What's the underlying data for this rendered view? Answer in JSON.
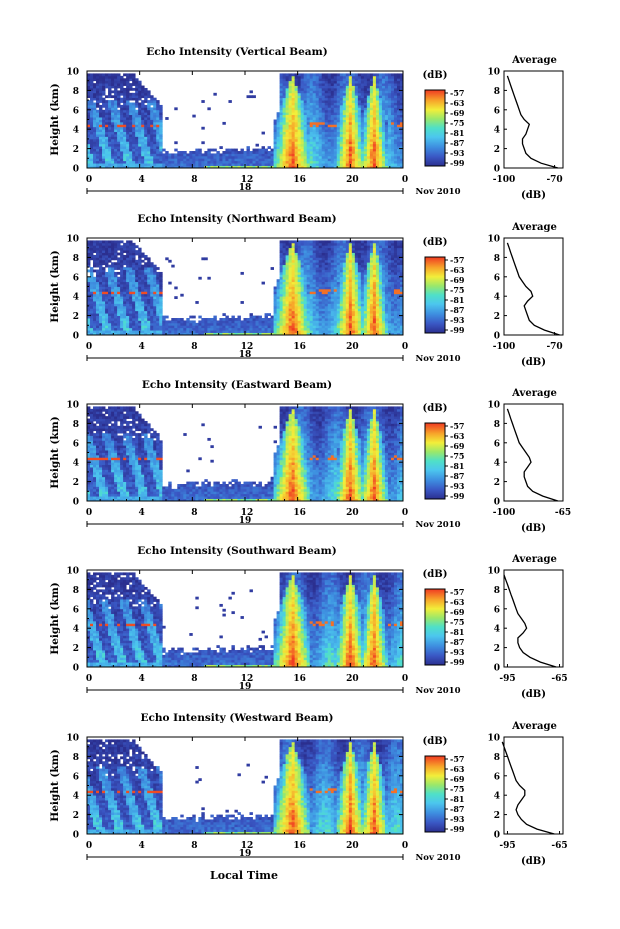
{
  "figure": {
    "xlabel": "Local Time",
    "panels_count_note": ""
  },
  "chart_data": [
    {
      "type": "heatmap",
      "title": "Echo Intensity (Vertical Beam)",
      "ylabel": "Height (km)",
      "yticks": [
        "0",
        "2",
        "4",
        "6",
        "8",
        "10"
      ],
      "ylim": [
        0,
        10
      ],
      "xticks": [
        "0",
        "4",
        "8",
        "12",
        "16",
        "20",
        "0"
      ],
      "xlim": [
        0,
        24
      ],
      "day_label": "18",
      "month_label": "Nov 2010",
      "colorbar": {
        "unit": "(dB)",
        "ticks": [
          "-57",
          "-63",
          "-69",
          "-75",
          "-81",
          "-87",
          "-93",
          "-99"
        ]
      },
      "average_profile": {
        "title": "Average",
        "xlabel": "(dB)",
        "xticks": [
          "-100",
          "-70"
        ],
        "xlim": [
          -100,
          -65
        ],
        "yticks": [
          "0",
          "2",
          "4",
          "6",
          "8",
          "10"
        ],
        "height_km": [
          0,
          0.5,
          1,
          1.5,
          2,
          2.5,
          3,
          3.5,
          4,
          4.5,
          5,
          5.5,
          6,
          6.5,
          7,
          7.5,
          8,
          8.5,
          9,
          9.5
        ],
        "db": [
          -68,
          -78,
          -84,
          -87,
          -88,
          -89,
          -89,
          -87,
          -86,
          -85,
          -88,
          -90,
          -91,
          -92,
          -93,
          -94,
          -95,
          -96,
          -97,
          -98
        ]
      }
    },
    {
      "type": "heatmap",
      "title": "Echo Intensity (Northward Beam)",
      "ylabel": "Height (km)",
      "yticks": [
        "0",
        "2",
        "4",
        "6",
        "8",
        "10"
      ],
      "ylim": [
        0,
        10
      ],
      "xticks": [
        "0",
        "4",
        "8",
        "12",
        "16",
        "20",
        "0"
      ],
      "xlim": [
        0,
        24
      ],
      "day_label": "18",
      "month_label": "Nov 2010",
      "colorbar": {
        "unit": "(dB)",
        "ticks": [
          "-57",
          "-63",
          "-69",
          "-75",
          "-81",
          "-87",
          "-93",
          "-99"
        ]
      },
      "average_profile": {
        "title": "Average",
        "xlabel": "(dB)",
        "xticks": [
          "-100",
          "-70"
        ],
        "xlim": [
          -100,
          -65
        ],
        "yticks": [
          "0",
          "2",
          "4",
          "6",
          "8",
          "10"
        ],
        "height_km": [
          0,
          0.5,
          1,
          1.5,
          2,
          2.5,
          3,
          3.5,
          4,
          4.5,
          5,
          5.5,
          6,
          6.5,
          7,
          7.5,
          8,
          8.5,
          9,
          9.5
        ],
        "db": [
          -67,
          -76,
          -82,
          -85,
          -86,
          -87,
          -88,
          -86,
          -83,
          -84,
          -87,
          -89,
          -91,
          -92,
          -93,
          -94,
          -95,
          -96,
          -97,
          -98
        ]
      }
    },
    {
      "type": "heatmap",
      "title": "Echo Intensity (Eastward Beam)",
      "ylabel": "Height (km)",
      "yticks": [
        "0",
        "2",
        "4",
        "6",
        "8",
        "10"
      ],
      "ylim": [
        0,
        10
      ],
      "xticks": [
        "0",
        "4",
        "8",
        "12",
        "16",
        "20",
        "0"
      ],
      "xlim": [
        0,
        24
      ],
      "day_label": "19",
      "month_label": "Nov 2010",
      "colorbar": {
        "unit": "(dB)",
        "ticks": [
          "-57",
          "-63",
          "-69",
          "-75",
          "-81",
          "-87",
          "-93",
          "-99"
        ]
      },
      "average_profile": {
        "title": "Average",
        "xlabel": "(dB)",
        "xticks": [
          "-100",
          "-65"
        ],
        "xlim": [
          -100,
          -65
        ],
        "yticks": [
          "0",
          "2",
          "4",
          "6",
          "8",
          "10"
        ],
        "height_km": [
          0,
          0.5,
          1,
          1.5,
          2,
          2.5,
          3,
          3.5,
          4,
          4.5,
          5,
          5.5,
          6,
          6.5,
          7,
          7.5,
          8,
          8.5,
          9,
          9.5
        ],
        "db": [
          -68,
          -77,
          -83,
          -86,
          -87,
          -88,
          -88,
          -86,
          -84,
          -85,
          -87,
          -89,
          -91,
          -92,
          -93,
          -94,
          -95,
          -96,
          -97,
          -98
        ]
      }
    },
    {
      "type": "heatmap",
      "title": "Echo Intensity (Southward Beam)",
      "ylabel": "Height (km)",
      "yticks": [
        "0",
        "2",
        "4",
        "6",
        "8",
        "10"
      ],
      "ylim": [
        0,
        10
      ],
      "xticks": [
        "0",
        "4",
        "8",
        "12",
        "16",
        "20",
        "0"
      ],
      "xlim": [
        0,
        24
      ],
      "day_label": "19",
      "month_label": "Nov 2010",
      "colorbar": {
        "unit": "(dB)",
        "ticks": [
          "-57",
          "-63",
          "-69",
          "-75",
          "-81",
          "-87",
          "-93",
          "-99"
        ]
      },
      "average_profile": {
        "title": "Average",
        "xlabel": "(dB)",
        "xticks": [
          "-95",
          "-65"
        ],
        "xlim": [
          -97,
          -63
        ],
        "yticks": [
          "0",
          "2",
          "4",
          "6",
          "8",
          "10"
        ],
        "height_km": [
          0,
          0.5,
          1,
          1.5,
          2,
          2.5,
          3,
          3.5,
          4,
          4.5,
          5,
          5.5,
          6,
          6.5,
          7,
          7.5,
          8,
          8.5,
          9,
          9.5
        ],
        "db": [
          -67,
          -76,
          -82,
          -86,
          -88,
          -89,
          -89,
          -86,
          -84,
          -85,
          -87,
          -89,
          -90,
          -91,
          -92,
          -93,
          -94,
          -95,
          -96,
          -97
        ]
      }
    },
    {
      "type": "heatmap",
      "title": "Echo Intensity (Westward Beam)",
      "ylabel": "Height (km)",
      "yticks": [
        "0",
        "2",
        "4",
        "6",
        "8",
        "10"
      ],
      "ylim": [
        0,
        10
      ],
      "xticks": [
        "0",
        "4",
        "8",
        "12",
        "16",
        "20",
        "0"
      ],
      "xlim": [
        0,
        24
      ],
      "day_label": "19",
      "month_label": "Nov 2010",
      "colorbar": {
        "unit": "(dB)",
        "ticks": [
          "-57",
          "-63",
          "-69",
          "-75",
          "-81",
          "-87",
          "-93",
          "-99"
        ]
      },
      "average_profile": {
        "title": "Average",
        "xlabel": "(dB)",
        "xticks": [
          "-95",
          "-65"
        ],
        "xlim": [
          -97,
          -63
        ],
        "yticks": [
          "0",
          "2",
          "4",
          "6",
          "8",
          "10"
        ],
        "height_km": [
          0,
          0.5,
          1,
          1.5,
          2,
          2.5,
          3,
          3.5,
          4,
          4.5,
          5,
          5.5,
          6,
          6.5,
          7,
          7.5,
          8,
          8.5,
          9,
          9.5
        ],
        "db": [
          -68,
          -78,
          -84,
          -87,
          -89,
          -90,
          -89,
          -87,
          -85,
          -85,
          -88,
          -90,
          -91,
          -92,
          -93,
          -94,
          -95,
          -96,
          -97,
          -98
        ]
      }
    }
  ]
}
